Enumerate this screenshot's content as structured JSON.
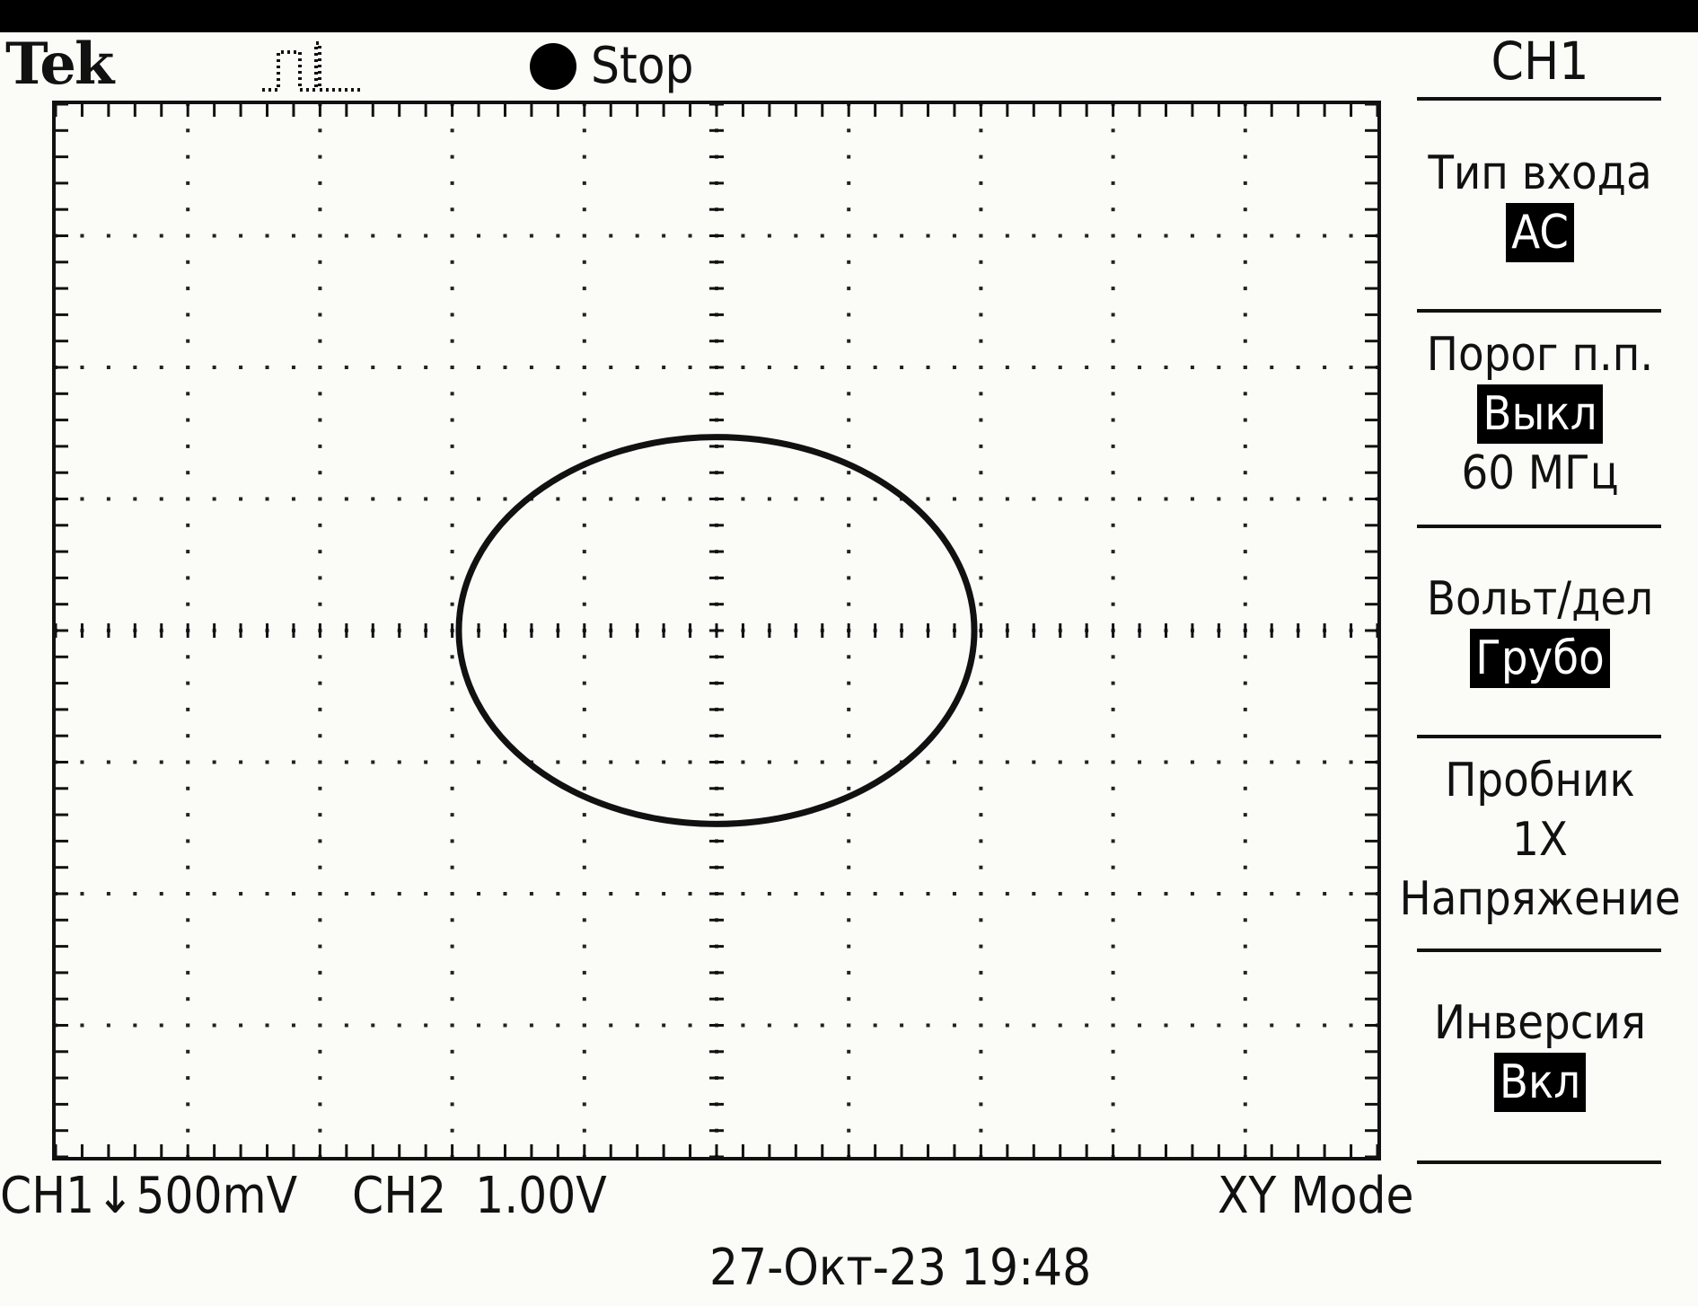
{
  "header": {
    "brand": "Tek",
    "run_state": "Stop",
    "trigger_icon": "trigger-pulse-icon"
  },
  "display": {
    "divisions_x": 10,
    "divisions_y": 8,
    "trace": {
      "type": "xy-ellipse",
      "center_div": [
        0,
        0
      ],
      "semi_axis_x_div": 1.95,
      "semi_axis_y_div": 1.47,
      "color": "#111111"
    },
    "grid": true
  },
  "menu": {
    "title": "CH1",
    "items": [
      {
        "label": "Тип входа",
        "value": "AC",
        "highlight": true
      },
      {
        "label": "Порог п.п.",
        "value": "Выкл",
        "highlight": true,
        "sub": "60 МГц"
      },
      {
        "label": "Вольт/дел",
        "value": "Грубо",
        "highlight": true
      },
      {
        "label": "Пробник",
        "value": "1X",
        "highlight": false,
        "sub": "Напряжение"
      },
      {
        "label": "Инверсия",
        "value": "Вкл",
        "highlight": true
      }
    ]
  },
  "status": {
    "ch1_name": "CH1",
    "ch1_arrow": "↓",
    "ch1_scale": "500mV",
    "ch2_name": "CH2",
    "ch2_scale": "1.00V",
    "mode": "XY Mode",
    "timestamp": "27-Окт-23 19:48"
  }
}
